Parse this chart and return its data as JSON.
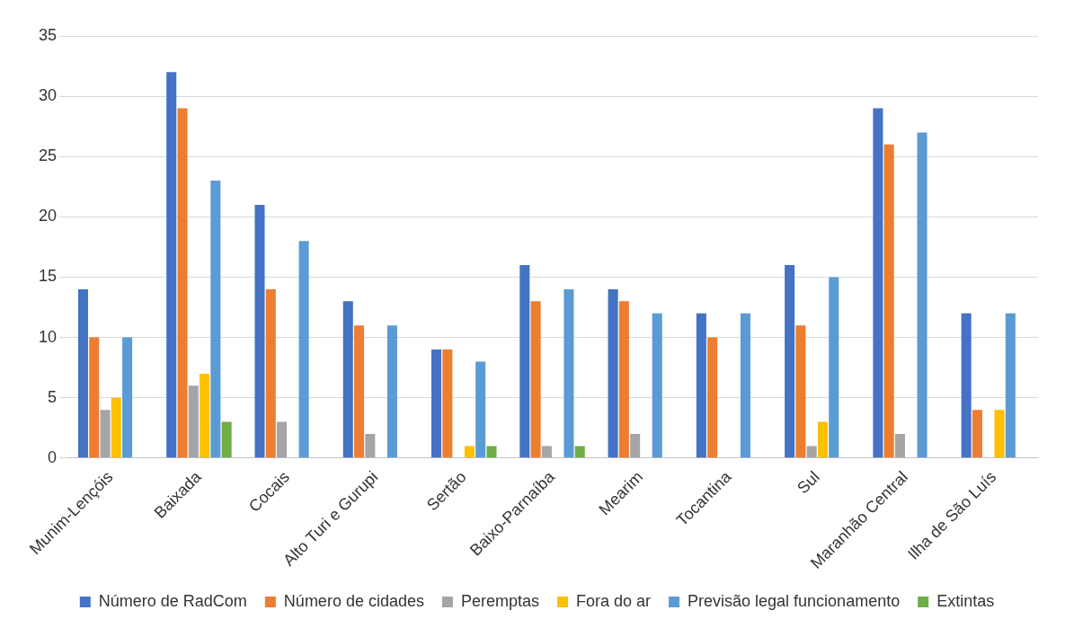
{
  "chart_data": {
    "type": "bar",
    "categories": [
      "Munim-Lençóis",
      "Baixada",
      "Cocais",
      "Alto Turi e Gurupi",
      "Sertão",
      "Baixo-Parnaíba",
      "Mearim",
      "Tocantina",
      "Sul",
      "Maranhão Central",
      "Ilha de São Luís"
    ],
    "series": [
      {
        "name": "Número de RadCom",
        "color": "#4472c4",
        "values": [
          14,
          32,
          21,
          13,
          9,
          16,
          14,
          12,
          16,
          29,
          12
        ]
      },
      {
        "name": "Número de cidades",
        "color": "#ed7d31",
        "values": [
          10,
          29,
          14,
          11,
          9,
          13,
          13,
          10,
          11,
          26,
          4
        ]
      },
      {
        "name": "Peremptas",
        "color": "#a5a5a5",
        "values": [
          4,
          6,
          3,
          2,
          0,
          1,
          2,
          0,
          1,
          2,
          0
        ]
      },
      {
        "name": "Fora do ar",
        "color": "#ffc000",
        "values": [
          5,
          7,
          0,
          0,
          1,
          0,
          0,
          0,
          3,
          0,
          4
        ]
      },
      {
        "name": "Previsão legal funcionamento",
        "color": "#5b9bd5",
        "values": [
          10,
          23,
          18,
          11,
          8,
          14,
          12,
          12,
          15,
          27,
          12
        ]
      },
      {
        "name": "Extintas",
        "color": "#70ad47",
        "values": [
          0,
          3,
          0,
          0,
          1,
          1,
          0,
          0,
          0,
          0,
          0
        ]
      }
    ],
    "ylim": [
      0,
      35
    ],
    "yticks": [
      0,
      5,
      10,
      15,
      20,
      25,
      30,
      35
    ],
    "grid": "y",
    "legend": "bottom"
  }
}
